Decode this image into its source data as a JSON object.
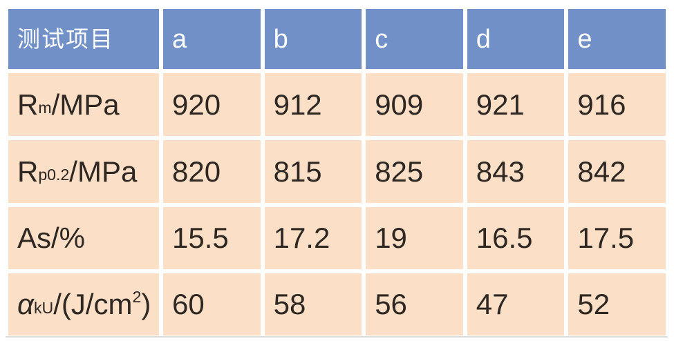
{
  "colors": {
    "header_bg": "#7190c8",
    "header_text": "#ffffff",
    "cell_bg": "#fbdfc7",
    "body_text": "#2f2722",
    "page_bg": "#ffffff",
    "shadow_line": "#dedcda"
  },
  "table": {
    "header_row": {
      "first_cell": "测试项目",
      "columns": [
        "a",
        "b",
        "c",
        "d",
        "e"
      ]
    },
    "rows": [
      {
        "name": "tensile-strength",
        "label_text": "Rm/MPa",
        "label_segments": [
          {
            "text": "R"
          },
          {
            "text": "m",
            "style": "sub"
          },
          {
            "text": "/MPa"
          }
        ],
        "values": [
          "920",
          "912",
          "909",
          "921",
          "916"
        ]
      },
      {
        "name": "yield-strength",
        "label_text": "Rp0.2/MPa",
        "label_segments": [
          {
            "text": "R"
          },
          {
            "text": "p0.2",
            "style": "sub"
          },
          {
            "text": "/MPa"
          }
        ],
        "values": [
          "820",
          "815",
          "825",
          "843",
          "842"
        ]
      },
      {
        "name": "elongation",
        "label_text": "As/%",
        "label_segments": [
          {
            "text": "As/%"
          }
        ],
        "values": [
          "15.5",
          "17.2",
          "19",
          "16.5",
          "17.5"
        ]
      },
      {
        "name": "impact-toughness",
        "label_text": "αkU/(J/cm2)",
        "label_segments": [
          {
            "text": "α",
            "style": "italic"
          },
          {
            "text": " "
          },
          {
            "text": "kU",
            "style": "sub"
          },
          {
            "text": "/(J/cm"
          },
          {
            "text": "2",
            "style": "sup"
          },
          {
            "text": ")"
          }
        ],
        "values": [
          "60",
          "58",
          "56",
          "47",
          "52"
        ]
      }
    ]
  }
}
